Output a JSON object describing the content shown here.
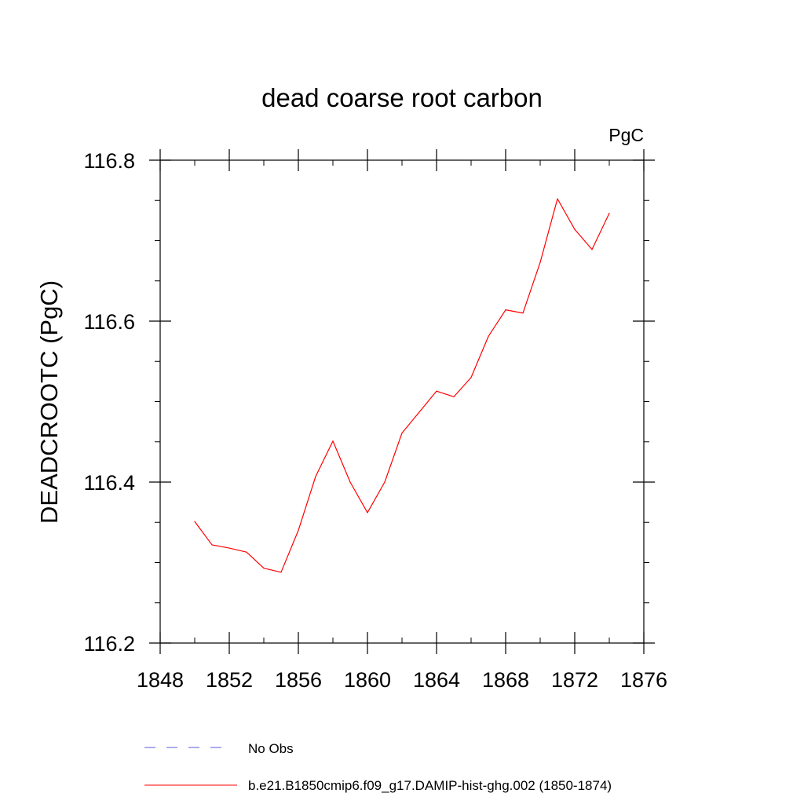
{
  "chart_data": {
    "type": "line",
    "title": "dead coarse root carbon",
    "units_label": "PgC",
    "ylabel": "DEADCROOTC  (PgC)",
    "xlabel": "",
    "xlim": [
      1848,
      1876
    ],
    "ylim": [
      116.2,
      116.8
    ],
    "x_major_ticks": [
      1848,
      1852,
      1856,
      1860,
      1864,
      1868,
      1872,
      1876
    ],
    "x_tick_labels": [
      "1848",
      "1852",
      "1856",
      "1860",
      "1864",
      "1868",
      "1872",
      "1876"
    ],
    "x_minor_ticks": [
      1850,
      1854,
      1858,
      1862,
      1866,
      1870,
      1874
    ],
    "y_major_ticks": [
      116.2,
      116.4,
      116.6,
      116.8
    ],
    "y_tick_labels": [
      "116.2",
      "116.4",
      "116.6",
      "116.8"
    ],
    "y_minor_ticks": [
      116.25,
      116.3,
      116.35,
      116.45,
      116.5,
      116.55,
      116.65,
      116.7,
      116.75
    ],
    "grid": false,
    "legend_position": "bottom",
    "series": [
      {
        "name": "b.e21.B1850cmip6.f09_g17.DAMIP-hist-ghg.002 (1850-1874)",
        "color": "#ff0000",
        "style": "solid",
        "x": [
          1850,
          1851,
          1852,
          1853,
          1854,
          1855,
          1856,
          1857,
          1858,
          1859,
          1860,
          1861,
          1862,
          1863,
          1864,
          1865,
          1866,
          1867,
          1868,
          1869,
          1870,
          1871,
          1872,
          1873,
          1874
        ],
        "y": [
          116.351,
          116.322,
          116.318,
          116.313,
          116.293,
          116.288,
          116.34,
          116.407,
          116.451,
          116.4,
          116.362,
          116.4,
          116.461,
          116.487,
          116.513,
          116.506,
          116.53,
          116.581,
          116.614,
          116.61,
          116.673,
          116.752,
          116.714,
          116.689,
          116.734
        ]
      }
    ],
    "legend": [
      {
        "label": "No Obs",
        "color": "#5a5ad8",
        "style": "dashed"
      },
      {
        "label": "b.e21.B1850cmip6.f09_g17.DAMIP-hist-ghg.002 (1850-1874)",
        "color": "#ff0000",
        "style": "solid"
      }
    ]
  }
}
